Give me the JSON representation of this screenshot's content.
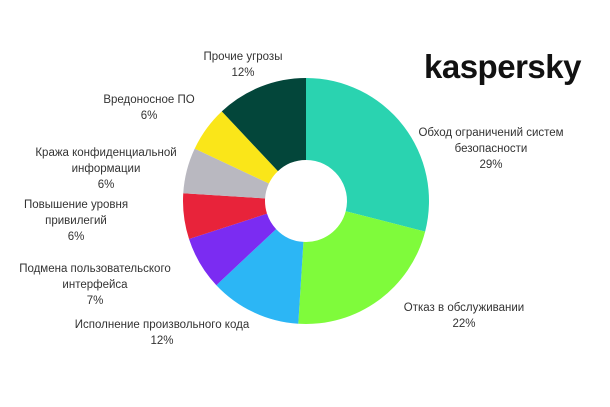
{
  "chart_data": {
    "type": "donut",
    "logo": "kaspersky",
    "categories": [
      "Обход ограничений систем безопасности",
      "Отказ в обслуживании",
      "Исполнение произвольного кода",
      "Подмена пользовательского интерфейса",
      "Повышение уровня привилегий",
      "Кража конфиденциальной информации",
      "Вредоносное ПО",
      "Прочие угрозы"
    ],
    "values": [
      29,
      22,
      12,
      7,
      6,
      6,
      6,
      12
    ],
    "value_labels": [
      "29%",
      "22%",
      "12%",
      "7%",
      "6%",
      "6%",
      "6%",
      "12%"
    ],
    "colors": [
      "#2ad3b0",
      "#7ffb3b",
      "#2cb6f5",
      "#7b2cf2",
      "#e8233a",
      "#b9b8c0",
      "#fae619",
      "#03463a"
    ]
  }
}
